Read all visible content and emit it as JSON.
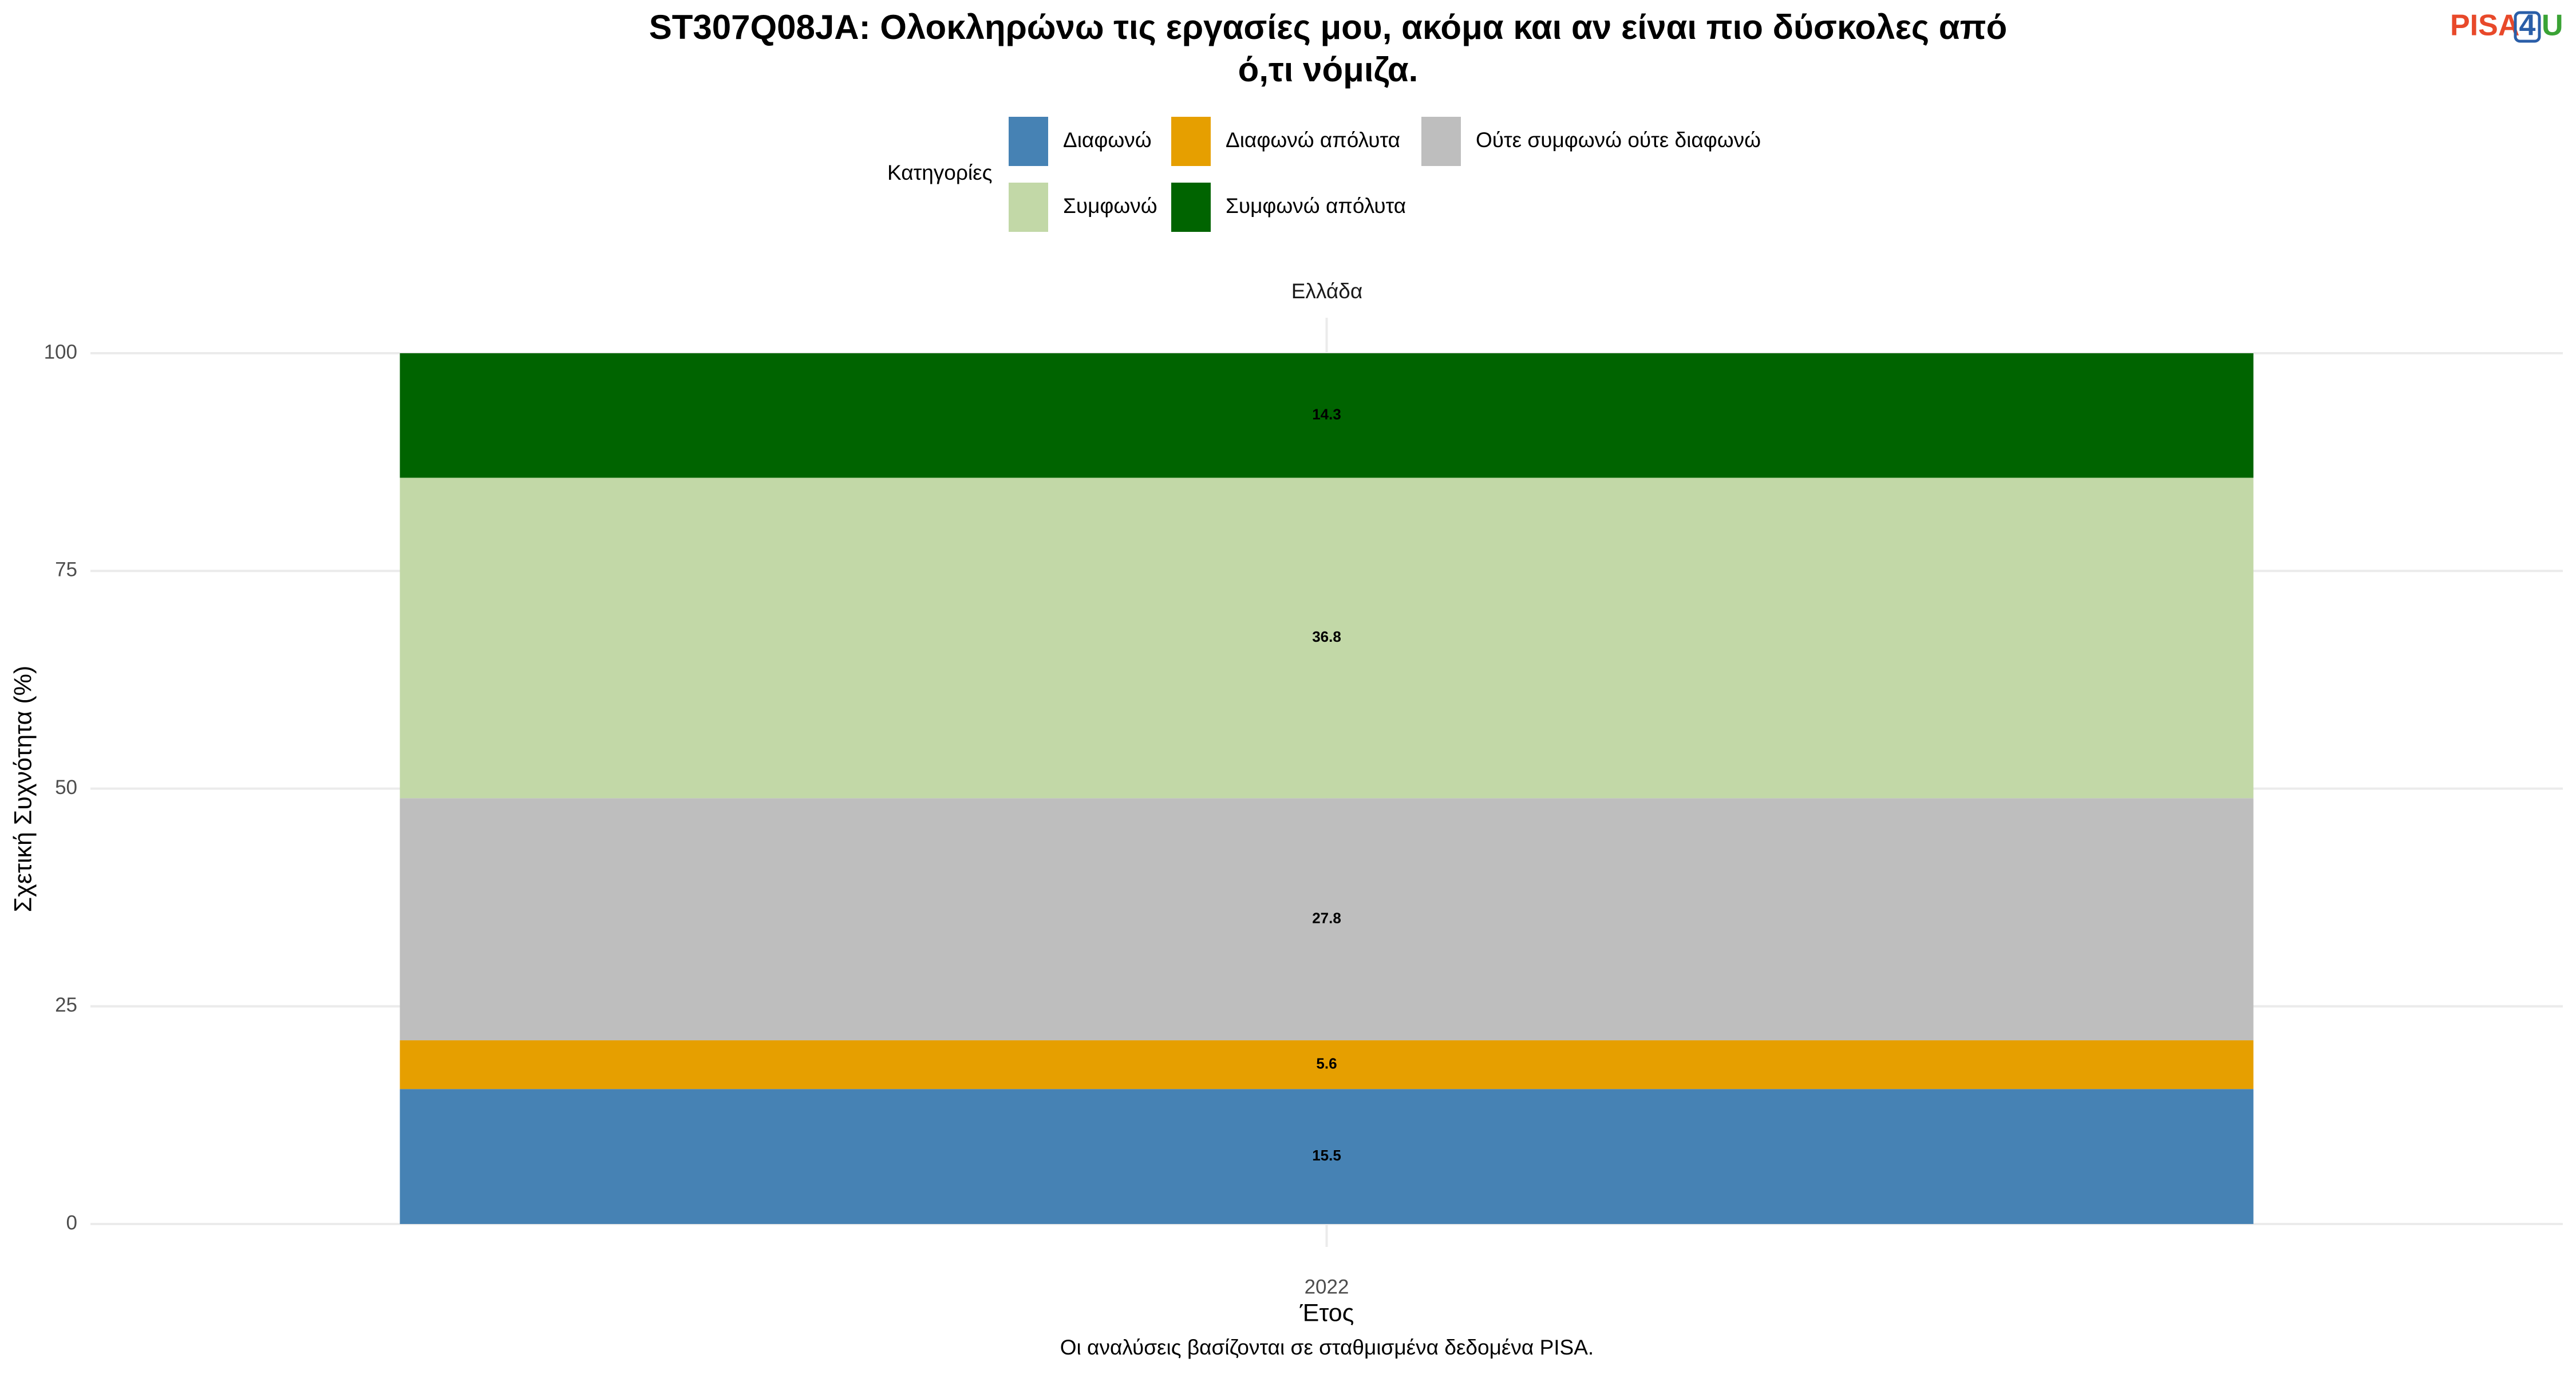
{
  "chart_data": {
    "type": "stacked_bar",
    "title_lines": [
      "ST307Q08JA: Ολοκληρώνω τις εργασίες μου, ακόμα και αν είναι πιο δύσκολες από",
      "ό,τι νόμιζα."
    ],
    "logo": [
      "PISA",
      "4",
      "U"
    ],
    "legend_title": "Κατηγορίες",
    "facet": "Ελλάδα",
    "xlabel": "Έτος",
    "ylabel": "Σχετική Συχνότητα (%)",
    "caption": "Οι αναλύσεις βασίζονται σε σταθμισμένα δεδομένα PISA.",
    "categories": [
      "2022"
    ],
    "series": [
      {
        "name": "Διαφωνώ",
        "color": "#4682b4",
        "values": [
          15.5
        ]
      },
      {
        "name": "Διαφωνώ απόλυτα",
        "color": "#e69f00",
        "values": [
          5.6
        ]
      },
      {
        "name": "Ούτε συμφωνώ ούτε διαφωνώ",
        "color": "#bebebe",
        "values": [
          27.8
        ]
      },
      {
        "name": "Συμφωνώ",
        "color": "#c2d8a7",
        "values": [
          36.8
        ]
      },
      {
        "name": "Συμφωνώ απόλυτα",
        "color": "#006400",
        "values": [
          14.3
        ]
      }
    ],
    "ylim": [
      0,
      100
    ],
    "yticks": [
      0,
      25,
      50,
      75,
      100
    ],
    "grid": true
  }
}
